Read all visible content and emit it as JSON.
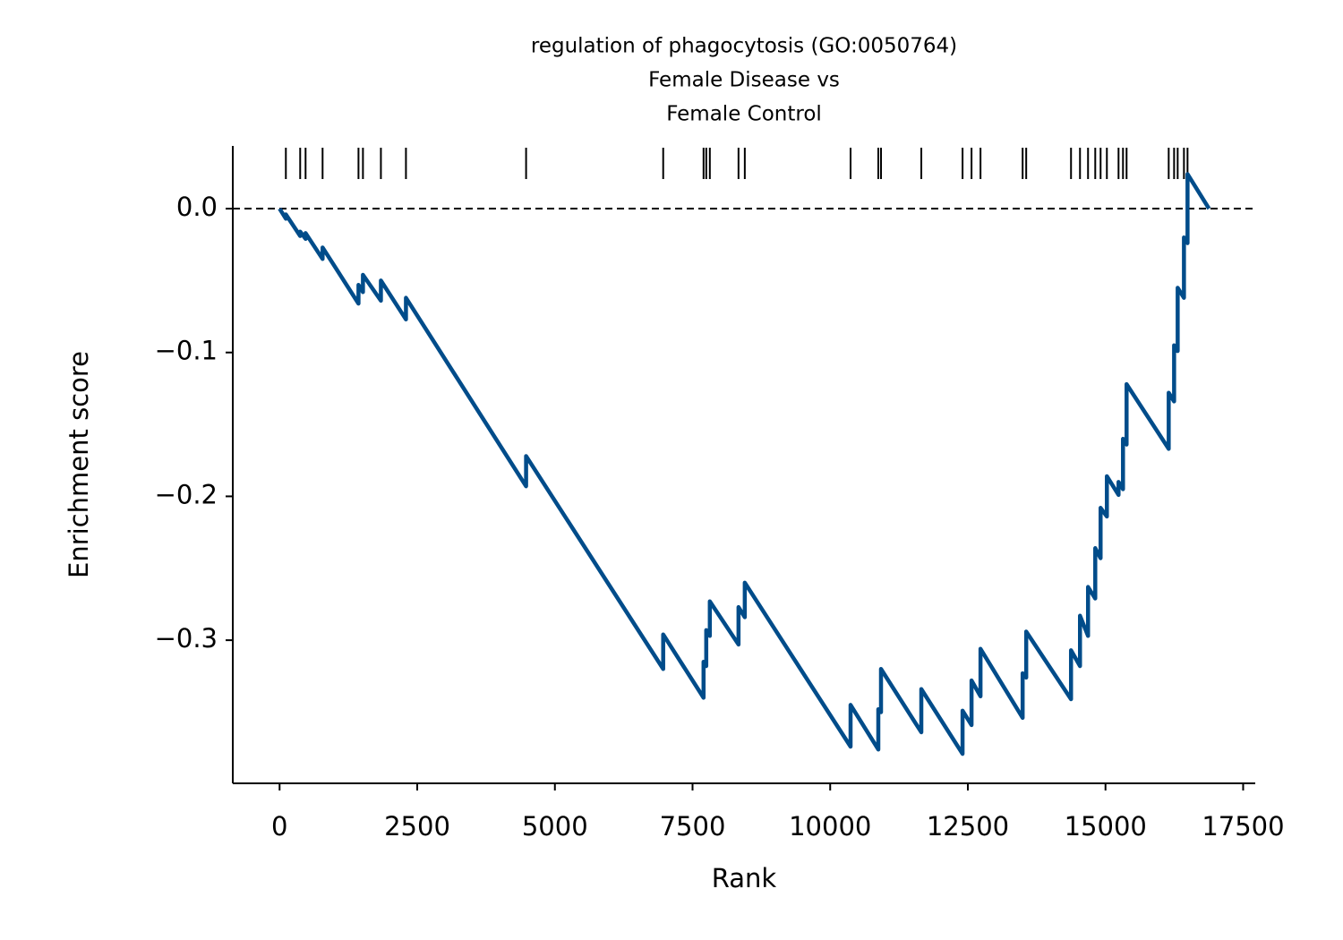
{
  "chart_data": {
    "type": "line",
    "title_lines": [
      "regulation of phagocytosis (GO:0050764)",
      "Female Disease vs",
      "Female Control"
    ],
    "xlabel": "Rank",
    "ylabel": "Enrichment score",
    "color": "#004c8a",
    "x": [
      0,
      114,
      114,
      374,
      374,
      472,
      472,
      781,
      781,
      1433,
      1433,
      1514,
      1514,
      1840,
      1840,
      2295,
      2295,
      4477,
      4477,
      6967,
      6967,
      7700,
      7700,
      7749,
      7749,
      7814,
      7814,
      8335,
      8335,
      8449,
      8449,
      10370,
      10370,
      10874,
      10874,
      10923,
      10923,
      11655,
      11655,
      12404,
      12404,
      12567,
      12567,
      12730,
      12730,
      13495,
      13495,
      13560,
      13560,
      14374,
      14374,
      14537,
      14537,
      14683,
      14683,
      14814,
      14814,
      14911,
      14911,
      15025,
      15025,
      15237,
      15237,
      15318,
      15318,
      15383,
      15383,
      16148,
      16148,
      16246,
      16246,
      16311,
      16311,
      16425,
      16425,
      16490,
      16490,
      16880
    ],
    "values": [
      0,
      -0.007,
      -0.004,
      -0.019,
      -0.016,
      -0.021,
      -0.017,
      -0.035,
      -0.027,
      -0.066,
      -0.053,
      -0.058,
      -0.046,
      -0.064,
      -0.05,
      -0.077,
      -0.062,
      -0.193,
      -0.172,
      -0.32,
      -0.296,
      -0.34,
      -0.315,
      -0.318,
      -0.293,
      -0.297,
      -0.273,
      -0.303,
      -0.277,
      -0.284,
      -0.26,
      -0.374,
      -0.345,
      -0.376,
      -0.348,
      -0.35,
      -0.32,
      -0.364,
      -0.334,
      -0.379,
      -0.349,
      -0.359,
      -0.328,
      -0.339,
      -0.306,
      -0.354,
      -0.323,
      -0.326,
      -0.294,
      -0.341,
      -0.307,
      -0.318,
      -0.283,
      -0.297,
      -0.263,
      -0.271,
      -0.236,
      -0.243,
      -0.208,
      -0.214,
      -0.186,
      -0.199,
      -0.19,
      -0.195,
      -0.16,
      -0.164,
      -0.122,
      -0.167,
      -0.128,
      -0.134,
      -0.095,
      -0.099,
      -0.055,
      -0.062,
      -0.02,
      -0.024,
      0.024,
      0
    ],
    "hits": [
      114,
      374,
      472,
      781,
      1433,
      1514,
      1840,
      2295,
      4477,
      6967,
      7700,
      7749,
      7814,
      8335,
      8449,
      10370,
      10874,
      10923,
      11655,
      12404,
      12567,
      12730,
      13495,
      13560,
      14374,
      14537,
      14683,
      14814,
      14911,
      15025,
      15237,
      15318,
      15383,
      16148,
      16246,
      16311,
      16425,
      16490
    ],
    "hline": 0,
    "xlim": [
      -850,
      17720
    ],
    "ylim": [
      -0.3995,
      0.0436
    ],
    "xticks": [
      0,
      2500,
      5000,
      7500,
      10000,
      12500,
      15000,
      17500
    ],
    "yticks": [
      {
        "value": 0,
        "label": "0.0"
      },
      {
        "value": -0.1,
        "label": "−0.1"
      },
      {
        "value": -0.2,
        "label": "−0.2"
      },
      {
        "value": -0.3,
        "label": "−0.3"
      }
    ]
  }
}
